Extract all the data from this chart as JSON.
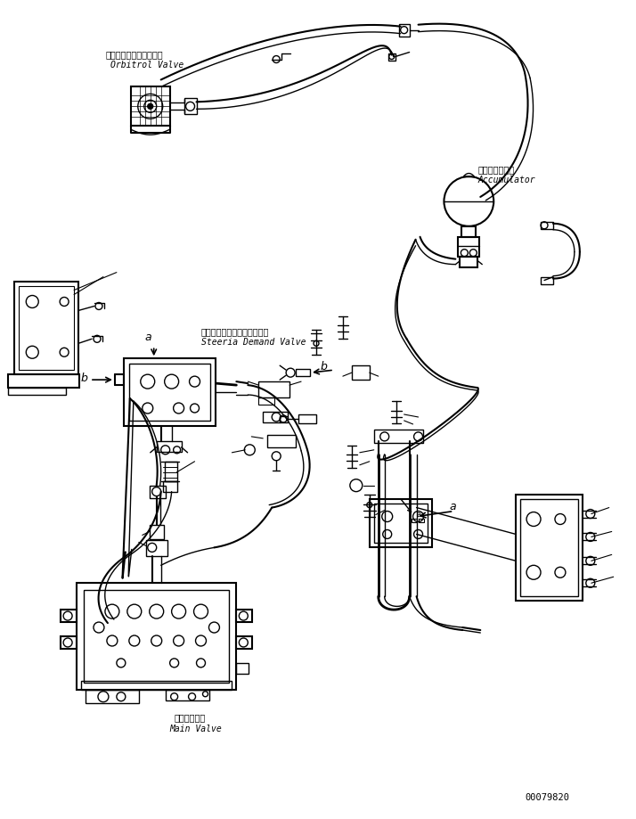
{
  "background_color": "#ffffff",
  "line_color": "#000000",
  "part_number": "00079820",
  "labels": {
    "orbitrol_jp": "オービットロールバルブ",
    "orbitrol_en": "Orbitrol Valve",
    "accumulator_jp": "アキュムレータ",
    "accumulator_en": "Accumulator",
    "steering_jp": "ステアリングデマンドバルブ",
    "steering_en": "Steeria Demand Valve",
    "mainvalve_jp": "メインバルブ",
    "mainvalve_en": "Main Valve"
  }
}
